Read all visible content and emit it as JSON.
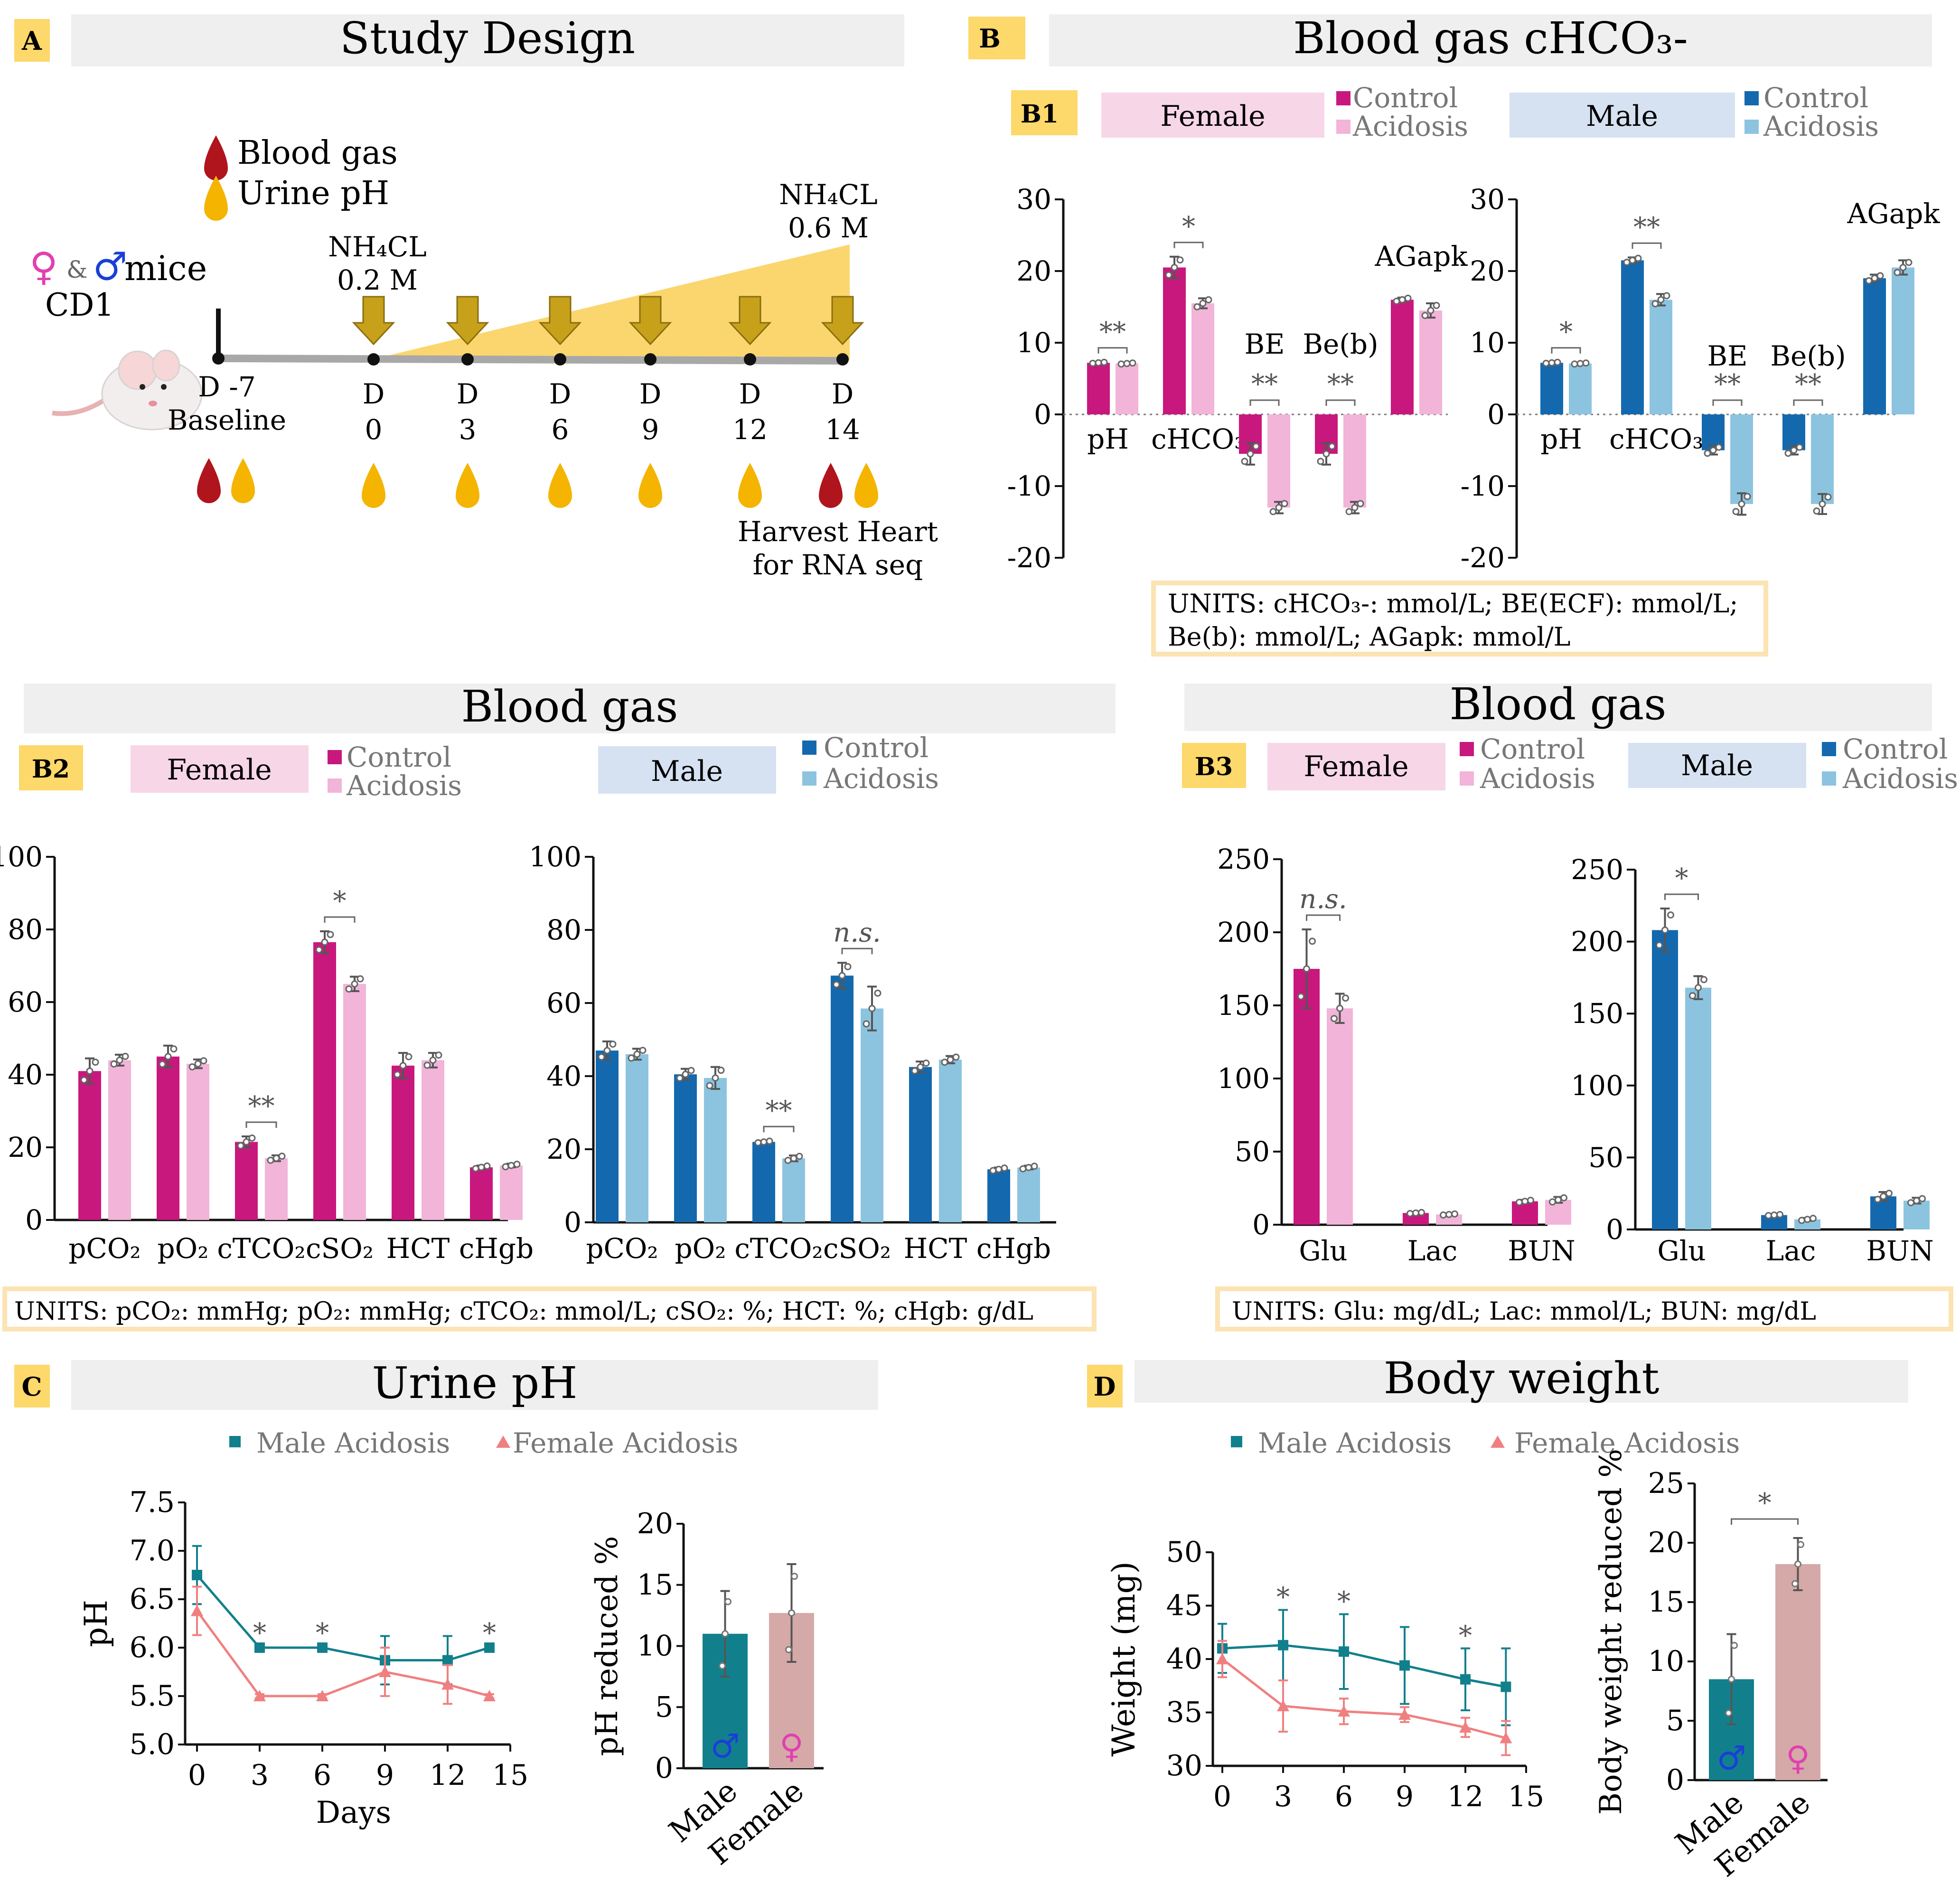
{
  "colors": {
    "female_control": "#C8187E",
    "female_acidosis": "#F2B4D8",
    "male_control": "#1469AE",
    "male_acidosis": "#8CC4E0",
    "panel_label_bg": "#FDD86A",
    "header_bg": "#EFEFEF",
    "female_box": "#F7D6E8",
    "male_box": "#D6E2F1",
    "units_border": "#FBE3B2",
    "triangle_fill": "#FBD66E",
    "arrow_fill": "#C7A11A",
    "line_male": "#12808C",
    "line_female": "#F08080",
    "bar_female_pct": "#D5A9A8",
    "sym_male": "#1A3FD8",
    "sym_female": "#E040B0",
    "blood_drop": "#B0141C",
    "urine_drop": "#F4B400"
  },
  "panel_a": {
    "label": "A",
    "title": "Study Design",
    "legend_blood": "Blood gas",
    "legend_urine": "Urine pH",
    "female_symbol": "♀",
    "amp": "&",
    "male_symbol": "♂",
    "mice": "mice",
    "strain": "CD1",
    "nh4cl_low": "NH₄CL",
    "nh4cl_low_conc": "0.2 M",
    "nh4cl_high": "NH₄CL",
    "nh4cl_high_conc": "0.6 M",
    "baseline_day": "D -7",
    "baseline_label": "Baseline",
    "days": [
      {
        "d": "D",
        "n": "0"
      },
      {
        "d": "D",
        "n": "3"
      },
      {
        "d": "D",
        "n": "6"
      },
      {
        "d": "D",
        "n": "9"
      },
      {
        "d": "D",
        "n": "12"
      },
      {
        "d": "D",
        "n": "14"
      }
    ],
    "harvest_line1": "Harvest Heart",
    "harvest_line2": "for RNA seq"
  },
  "panel_b": {
    "label": "B",
    "title": "Blood gas cHCO₃-",
    "sub_label": "B1",
    "female_box": "Female",
    "male_box": "Male",
    "legend_control": "Control",
    "legend_acidosis": "Acidosis",
    "units_line1": "UNITS: cHCO₃-: mmol/L; BE(ECF): mmol/L;",
    "units_line2": "Be(b): mmol/L; AGapk: mmol/L"
  },
  "panel_b2": {
    "label": "B2",
    "title": "Blood gas",
    "female_box": "Female",
    "male_box": "Male",
    "legend_control": "Control",
    "legend_acidosis": "Acidosis",
    "units": "UNITS: pCO₂: mmHg; pO₂: mmHg; cTCO₂: mmol/L; cSO₂: %; HCT: %; cHgb: g/dL"
  },
  "panel_b3": {
    "label": "B3",
    "title": "Blood gas",
    "female_box": "Female",
    "male_box": "Male",
    "legend_control": "Control",
    "legend_acidosis": "Acidosis",
    "units": "UNITS: Glu: mg/dL; Lac: mmol/L;  BUN: mg/dL"
  },
  "panel_c": {
    "label": "C",
    "title": "Urine pH",
    "legend_male": "Male Acidosis",
    "legend_female": "Female Acidosis"
  },
  "panel_d": {
    "label": "D",
    "title": "Body weight",
    "legend_male": "Male Acidosis",
    "legend_female": "Female Acidosis"
  },
  "chart_data": [
    {
      "id": "b1_female",
      "type": "bar",
      "title": "Blood gas cHCO3- (Female)",
      "categories": [
        "pH",
        "cHCO₃-",
        "BE",
        "Be(b)",
        "AGapk"
      ],
      "series": [
        {
          "name": "Control",
          "values": [
            7.2,
            20.5,
            -5.5,
            -5.5,
            16
          ],
          "errors": [
            0.1,
            1.5,
            1.5,
            1.5,
            0.3
          ]
        },
        {
          "name": "Acidosis",
          "values": [
            7.1,
            15.5,
            -13,
            -13,
            14.5
          ],
          "errors": [
            0.1,
            0.7,
            0.8,
            0.8,
            1.0
          ]
        }
      ],
      "significance": [
        "**",
        "*",
        "**",
        "**",
        ""
      ],
      "ylim": [
        -20,
        30
      ],
      "yticks": [
        -20,
        -10,
        0,
        10,
        20,
        30
      ]
    },
    {
      "id": "b1_male",
      "type": "bar",
      "title": "Blood gas cHCO3- (Male)",
      "categories": [
        "pH",
        "cHCO₃-",
        "BE",
        "Be(b)",
        "AGapk"
      ],
      "series": [
        {
          "name": "Control",
          "values": [
            7.2,
            21.5,
            -5,
            -5,
            19
          ],
          "errors": [
            0.1,
            0.4,
            0.6,
            0.6,
            0.5
          ]
        },
        {
          "name": "Acidosis",
          "values": [
            7.1,
            16,
            -12.5,
            -12.5,
            20.5
          ],
          "errors": [
            0.1,
            0.8,
            1.5,
            1.4,
            1.0
          ]
        }
      ],
      "significance": [
        "*",
        "**",
        "**",
        "**",
        ""
      ],
      "ylim": [
        -20,
        30
      ],
      "yticks": [
        -20,
        -10,
        0,
        10,
        20,
        30
      ]
    },
    {
      "id": "b2_female",
      "type": "bar",
      "title": "Blood gas (Female)",
      "categories": [
        "pCO₂",
        "pO₂",
        "cTCO₂",
        "cSO₂",
        "HCT",
        "cHgb"
      ],
      "series": [
        {
          "name": "Control",
          "values": [
            41,
            45,
            21.5,
            76.5,
            42.5,
            14.5
          ],
          "errors": [
            3.5,
            3,
            1.5,
            3,
            3.5,
            0.5
          ]
        },
        {
          "name": "Acidosis",
          "values": [
            44,
            43,
            17,
            65,
            44,
            15
          ],
          "errors": [
            1.5,
            1.2,
            0.8,
            2,
            2,
            0.5
          ]
        }
      ],
      "significance": [
        "",
        "",
        "**",
        "*",
        "",
        ""
      ],
      "ylim": [
        0,
        100
      ],
      "yticks": [
        0,
        20,
        40,
        60,
        80,
        100
      ]
    },
    {
      "id": "b2_male",
      "type": "bar",
      "title": "Blood gas (Male)",
      "categories": [
        "pCO₂",
        "pO₂",
        "cTCO₂",
        "cSO₂",
        "HCT",
        "cHgb"
      ],
      "series": [
        {
          "name": "Control",
          "values": [
            47,
            40.5,
            22,
            67.5,
            42.5,
            14.5
          ],
          "errors": [
            2.5,
            1.5,
            0.3,
            3.5,
            1.5,
            0.5
          ]
        },
        {
          "name": "Acidosis",
          "values": [
            46,
            39.5,
            17.5,
            58.5,
            44.5,
            15
          ],
          "errors": [
            1.5,
            3,
            0.8,
            6,
            1,
            0.5
          ]
        }
      ],
      "significance": [
        "",
        "",
        "**",
        "n.s.",
        "",
        ""
      ],
      "ylim": [
        0,
        100
      ],
      "yticks": [
        0,
        20,
        40,
        60,
        80,
        100
      ]
    },
    {
      "id": "b3_female",
      "type": "bar",
      "title": "Blood gas (Female)",
      "categories": [
        "Glu",
        "Lac",
        "BUN"
      ],
      "series": [
        {
          "name": "Control",
          "values": [
            175,
            8,
            16
          ],
          "errors": [
            27,
            0.5,
            1
          ]
        },
        {
          "name": "Acidosis",
          "values": [
            148,
            7,
            17
          ],
          "errors": [
            10,
            0.5,
            2
          ]
        }
      ],
      "significance": [
        "n.s.",
        "",
        ""
      ],
      "ylim": [
        0,
        250
      ],
      "yticks": [
        0,
        50,
        100,
        150,
        200,
        250
      ]
    },
    {
      "id": "b3_male",
      "type": "bar",
      "title": "Blood gas (Male)",
      "categories": [
        "Glu",
        "Lac",
        "BUN"
      ],
      "series": [
        {
          "name": "Control",
          "values": [
            208,
            10,
            23
          ],
          "errors": [
            15,
            0.5,
            3
          ]
        },
        {
          "name": "Acidosis",
          "values": [
            168,
            7,
            20
          ],
          "errors": [
            8,
            1,
            2
          ]
        }
      ],
      "significance": [
        "*",
        "",
        ""
      ],
      "ylim": [
        0,
        250
      ],
      "yticks": [
        0,
        50,
        100,
        150,
        200,
        250
      ]
    },
    {
      "id": "c_line",
      "type": "line",
      "title": "Urine pH",
      "x": [
        0,
        3,
        6,
        9,
        12,
        14
      ],
      "series": [
        {
          "name": "Male Acidosis",
          "values": [
            6.75,
            6.0,
            6.0,
            5.87,
            5.87,
            6.0
          ],
          "errors": [
            0.3,
            0.02,
            0.02,
            0.25,
            0.25,
            0.02
          ]
        },
        {
          "name": "Female Acidosis",
          "values": [
            6.38,
            5.5,
            5.5,
            5.75,
            5.62,
            5.5
          ],
          "errors": [
            0.25,
            0.02,
            0.02,
            0.25,
            0.2,
            0.02
          ]
        }
      ],
      "significance": [
        "",
        "*",
        "*",
        "",
        "",
        "*"
      ],
      "xlabel": "Days",
      "ylabel": "pH",
      "xlim": [
        0,
        15
      ],
      "xticks": [
        0,
        3,
        6,
        9,
        12,
        15
      ],
      "ylim": [
        5.0,
        7.5
      ],
      "yticks": [
        "5.0",
        "5.5",
        "6.0",
        "6.5",
        "7.0",
        "7.5"
      ]
    },
    {
      "id": "c_bar",
      "type": "bar",
      "title": "pH reduced %",
      "categories": [
        "Male",
        "Female"
      ],
      "values": [
        11,
        12.7
      ],
      "errors": [
        3.5,
        4
      ],
      "ylabel": "pH reduced %",
      "ylim": [
        0,
        20
      ],
      "yticks": [
        0,
        5,
        10,
        15,
        20
      ]
    },
    {
      "id": "d_line",
      "type": "line",
      "title": "Body weight",
      "x": [
        0,
        3,
        6,
        9,
        12,
        14
      ],
      "series": [
        {
          "name": "Male Acidosis",
          "values": [
            41,
            41.3,
            40.7,
            39.4,
            38.1,
            37.4
          ],
          "errors": [
            2.3,
            3.3,
            3.5,
            3.6,
            2.9,
            3.6
          ]
        },
        {
          "name": "Female Acidosis",
          "values": [
            40,
            35.6,
            35.1,
            34.8,
            33.6,
            32.6
          ],
          "errors": [
            1.7,
            2.4,
            1.2,
            0.7,
            0.9,
            1.6
          ]
        }
      ],
      "significance": [
        "",
        "*",
        "*",
        "",
        "*",
        ""
      ],
      "xlabel": "",
      "ylabel": "Weight (mg)",
      "xlim": [
        0,
        15
      ],
      "xticks": [
        0,
        3,
        6,
        9,
        12,
        15
      ],
      "ylim": [
        30,
        50
      ],
      "yticks": [
        30,
        35,
        40,
        45,
        50
      ]
    },
    {
      "id": "d_bar",
      "type": "bar",
      "title": "Body weight reduced %",
      "categories": [
        "Male",
        "Female"
      ],
      "values": [
        8.5,
        18.2
      ],
      "errors": [
        3.8,
        2.2
      ],
      "significance": "*",
      "ylabel": "Body weight reduced %",
      "ylim": [
        0,
        25
      ],
      "yticks": [
        0,
        5,
        10,
        15,
        20,
        25
      ]
    }
  ]
}
